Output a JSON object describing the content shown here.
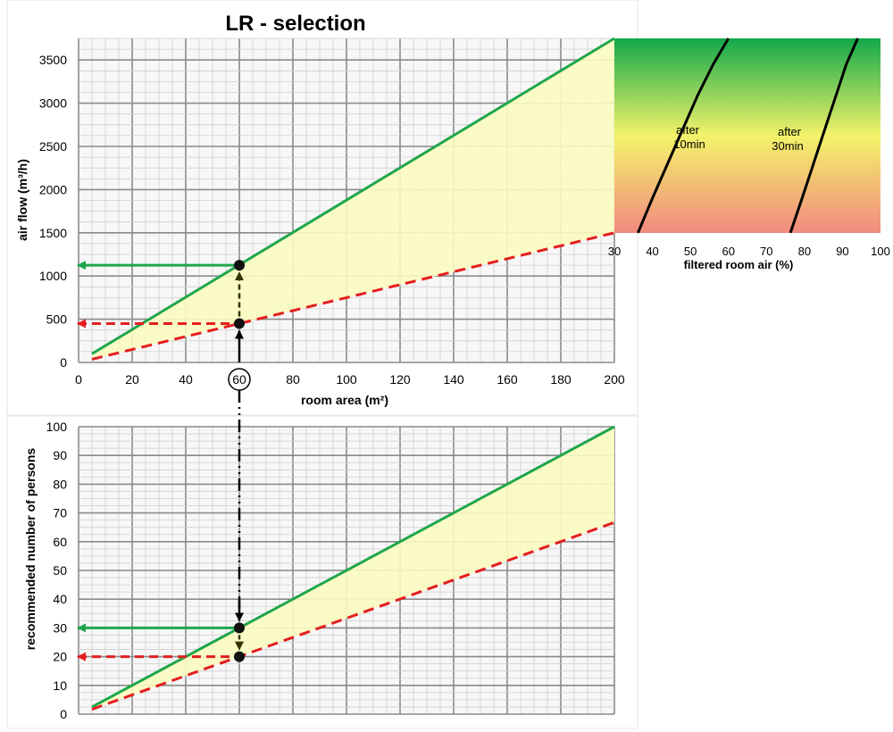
{
  "chart_data": [
    {
      "id": "airflow",
      "type": "line",
      "title": "LR - selection",
      "xlabel": "room area (m²)",
      "ylabel": "air flow (m³/h)",
      "xlim": [
        0,
        200
      ],
      "ylim": [
        0,
        3750
      ],
      "xticks": [
        "0",
        "20",
        "40",
        "60",
        "80",
        "100",
        "120",
        "140",
        "160",
        "180",
        "200"
      ],
      "yticks": [
        "0",
        "500",
        "1000",
        "1500",
        "2000",
        "2500",
        "3000",
        "3500"
      ],
      "grid": true,
      "shaded_band": "between series",
      "series": [
        {
          "style": "solid",
          "color": "#1fa64b",
          "x": [
            5,
            200
          ],
          "y": [
            100,
            3750
          ]
        },
        {
          "style": "dashed",
          "color": "#e41e1e",
          "x": [
            5,
            200
          ],
          "y": [
            37,
            1500
          ]
        }
      ],
      "reading": {
        "x": 60,
        "x_label": "60",
        "y_upper": 1125,
        "y_lower": 450
      }
    },
    {
      "id": "filtered",
      "type": "line",
      "xlabel": "filtered room air (%)",
      "xlim": [
        30,
        100
      ],
      "xticks": [
        "30",
        "40",
        "50",
        "60",
        "70",
        "80",
        "90",
        "100"
      ],
      "background": "vertical gradient green (top) to yellow to red (bottom)",
      "annotations": [
        {
          "id": "after10",
          "lines": [
            "after",
            "10min"
          ]
        },
        {
          "id": "after30",
          "lines": [
            "after",
            "30min"
          ]
        }
      ],
      "series": [
        {
          "id": "after10",
          "color": "#000000",
          "x": [
            36.2,
            40,
            44,
            48,
            52,
            56,
            60
          ],
          "y": [
            1500,
            1900,
            2300,
            2700,
            3100,
            3450,
            3750
          ]
        },
        {
          "id": "after30",
          "color": "#000000",
          "x": [
            76.3,
            79,
            82,
            85,
            88,
            91,
            94
          ],
          "y": [
            1500,
            1850,
            2250,
            2650,
            3050,
            3450,
            3750
          ]
        }
      ]
    },
    {
      "id": "persons",
      "type": "line",
      "ylabel": "recommended number of persons",
      "xlim": [
        0,
        200
      ],
      "ylim": [
        0,
        100
      ],
      "yticks": [
        "0",
        "10",
        "20",
        "30",
        "40",
        "50",
        "60",
        "70",
        "80",
        "90",
        "100"
      ],
      "grid": true,
      "shaded_band": "between series",
      "series": [
        {
          "style": "solid",
          "color": "#1fa64b",
          "x": [
            5,
            200
          ],
          "y": [
            2.5,
            100
          ]
        },
        {
          "style": "dashed",
          "color": "#e41e1e",
          "x": [
            5,
            200
          ],
          "y": [
            1.7,
            66.7
          ]
        }
      ],
      "reading": {
        "x": 60,
        "y_upper": 30,
        "y_lower": 20
      }
    }
  ]
}
